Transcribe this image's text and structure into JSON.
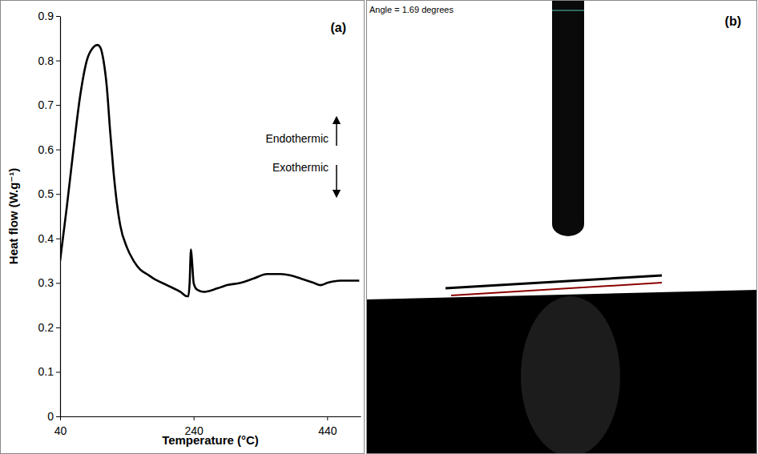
{
  "chart_data": {
    "type": "line",
    "panel_label": "(a)",
    "x_label": "Temperature (°C)",
    "y_label": "Heat flow (W.g⁻¹)",
    "annotations": [
      "Endothermic",
      "Exothermic"
    ],
    "x": [
      40,
      50,
      60,
      70,
      80,
      90,
      96,
      100,
      105,
      110,
      115,
      120,
      125,
      130,
      140,
      150,
      160,
      170,
      180,
      200,
      220,
      230,
      232,
      234,
      236,
      238,
      240,
      245,
      255,
      270,
      280,
      290,
      310,
      330,
      350,
      370,
      390,
      400,
      420,
      430,
      440,
      460,
      475,
      488
    ],
    "values": [
      0.35,
      0.47,
      0.6,
      0.72,
      0.8,
      0.83,
      0.835,
      0.83,
      0.8,
      0.74,
      0.64,
      0.55,
      0.48,
      0.43,
      0.38,
      0.35,
      0.33,
      0.32,
      0.31,
      0.295,
      0.28,
      0.27,
      0.27,
      0.3,
      0.375,
      0.34,
      0.3,
      0.285,
      0.28,
      0.285,
      0.29,
      0.295,
      0.3,
      0.31,
      0.32,
      0.32,
      0.315,
      0.31,
      0.3,
      0.295,
      0.3,
      0.305,
      0.305,
      0.305
    ],
    "color": "#000000",
    "xlim": [
      40,
      490
    ],
    "xticks": [
      40,
      240,
      440
    ],
    "ylim": [
      0,
      0.9
    ],
    "yticks": [
      0,
      0.1,
      0.2,
      0.3,
      0.4,
      0.5,
      0.6,
      0.7,
      0.8,
      0.9
    ],
    "grid": false
  },
  "photo": {
    "panel_label": "(b)",
    "caption": "Angle = 1.69 degrees"
  }
}
